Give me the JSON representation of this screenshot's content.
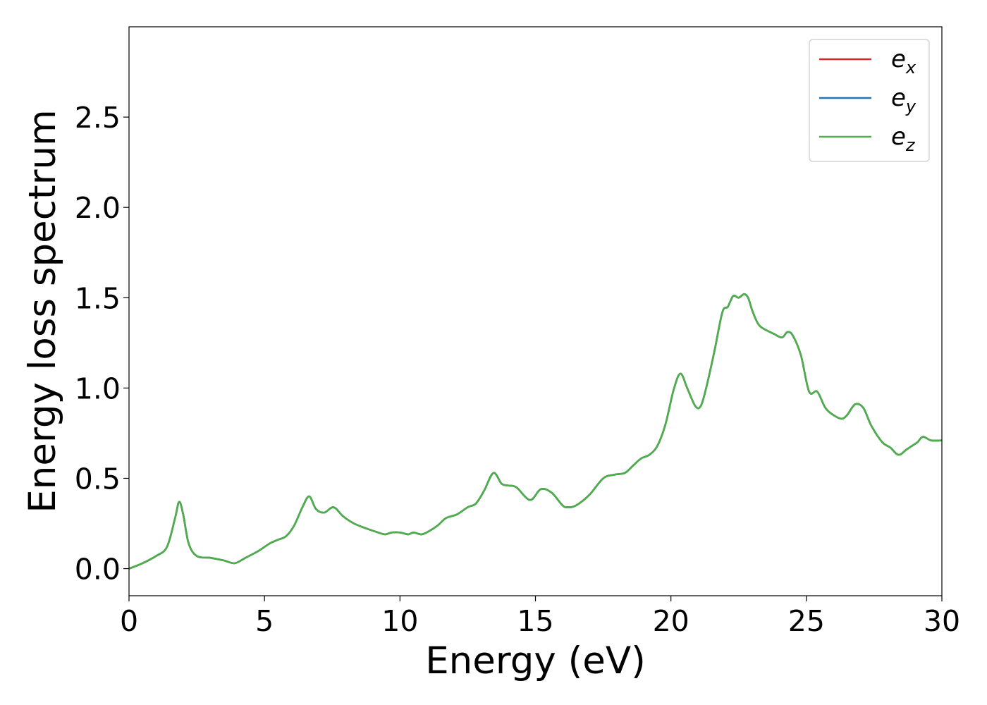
{
  "chart_data": {
    "type": "line",
    "xlabel": "Energy (eV)",
    "ylabel": "Energy loss spectrum",
    "xlim": [
      0,
      30
    ],
    "ylim": [
      -0.15,
      3.0
    ],
    "xticks": [
      "0",
      "5",
      "10",
      "15",
      "20",
      "25",
      "30"
    ],
    "yticks": [
      "0.0",
      "0.5",
      "1.0",
      "1.5",
      "2.0",
      "2.5"
    ],
    "grid": false,
    "legend_position": "top-right",
    "x": [
      0,
      0.5,
      1.0,
      1.4,
      1.7,
      1.85,
      2.0,
      2.2,
      2.5,
      3.0,
      3.5,
      3.9,
      4.3,
      4.8,
      5.2,
      5.5,
      5.8,
      6.1,
      6.4,
      6.65,
      6.9,
      7.2,
      7.55,
      7.9,
      8.3,
      8.8,
      9.2,
      9.45,
      9.7,
      10.0,
      10.3,
      10.5,
      10.8,
      11.1,
      11.4,
      11.7,
      12.1,
      12.5,
      12.8,
      13.1,
      13.45,
      13.75,
      14.0,
      14.3,
      14.8,
      15.2,
      15.6,
      16.0,
      16.2,
      16.5,
      17.0,
      17.5,
      17.9,
      18.3,
      18.6,
      18.9,
      19.2,
      19.5,
      19.8,
      20.1,
      20.35,
      20.6,
      20.9,
      21.1,
      21.3,
      21.6,
      21.9,
      22.1,
      22.3,
      22.5,
      22.7,
      22.85,
      23.0,
      23.2,
      23.4,
      23.8,
      24.1,
      24.3,
      24.5,
      24.8,
      25.1,
      25.4,
      25.7,
      26.0,
      26.3,
      26.5,
      26.8,
      27.1,
      27.4,
      27.8,
      28.1,
      28.4,
      28.7,
      28.9,
      29.1,
      29.3,
      29.6,
      30.0
    ],
    "series": [
      {
        "name": "e_x",
        "color": "#d62728",
        "values": [
          0.0,
          0.03,
          0.07,
          0.12,
          0.28,
          0.37,
          0.3,
          0.14,
          0.07,
          0.06,
          0.045,
          0.03,
          0.06,
          0.1,
          0.14,
          0.16,
          0.18,
          0.24,
          0.34,
          0.4,
          0.33,
          0.31,
          0.34,
          0.29,
          0.25,
          0.22,
          0.2,
          0.19,
          0.2,
          0.2,
          0.19,
          0.2,
          0.19,
          0.21,
          0.24,
          0.28,
          0.3,
          0.34,
          0.36,
          0.43,
          0.53,
          0.47,
          0.46,
          0.45,
          0.38,
          0.44,
          0.42,
          0.35,
          0.34,
          0.35,
          0.41,
          0.5,
          0.52,
          0.53,
          0.57,
          0.61,
          0.63,
          0.68,
          0.8,
          0.99,
          1.08,
          1.0,
          0.9,
          0.9,
          1.0,
          1.2,
          1.42,
          1.45,
          1.51,
          1.5,
          1.52,
          1.5,
          1.43,
          1.36,
          1.33,
          1.3,
          1.28,
          1.31,
          1.29,
          1.18,
          0.98,
          0.98,
          0.89,
          0.85,
          0.83,
          0.85,
          0.91,
          0.89,
          0.79,
          0.7,
          0.67,
          0.63,
          0.66,
          0.68,
          0.7,
          0.73,
          0.71,
          0.71
        ]
      },
      {
        "name": "e_y",
        "color": "#1f77b4",
        "values": [
          0.0,
          0.03,
          0.07,
          0.12,
          0.28,
          0.37,
          0.3,
          0.14,
          0.07,
          0.06,
          0.045,
          0.03,
          0.06,
          0.1,
          0.14,
          0.16,
          0.18,
          0.24,
          0.34,
          0.4,
          0.33,
          0.31,
          0.34,
          0.29,
          0.25,
          0.22,
          0.2,
          0.19,
          0.2,
          0.2,
          0.19,
          0.2,
          0.19,
          0.21,
          0.24,
          0.28,
          0.3,
          0.34,
          0.36,
          0.43,
          0.53,
          0.47,
          0.46,
          0.45,
          0.38,
          0.44,
          0.42,
          0.35,
          0.34,
          0.35,
          0.41,
          0.5,
          0.52,
          0.53,
          0.57,
          0.61,
          0.63,
          0.68,
          0.8,
          0.99,
          1.08,
          1.0,
          0.9,
          0.9,
          1.0,
          1.2,
          1.42,
          1.45,
          1.51,
          1.5,
          1.52,
          1.5,
          1.43,
          1.36,
          1.33,
          1.3,
          1.28,
          1.31,
          1.29,
          1.18,
          0.98,
          0.98,
          0.89,
          0.85,
          0.83,
          0.85,
          0.91,
          0.89,
          0.79,
          0.7,
          0.67,
          0.63,
          0.66,
          0.68,
          0.7,
          0.73,
          0.71,
          0.71
        ]
      },
      {
        "name": "e_z",
        "color": "#4daf4a",
        "values": [
          0.0,
          0.03,
          0.07,
          0.12,
          0.28,
          0.37,
          0.3,
          0.14,
          0.07,
          0.06,
          0.045,
          0.03,
          0.06,
          0.1,
          0.14,
          0.16,
          0.18,
          0.24,
          0.34,
          0.4,
          0.33,
          0.31,
          0.34,
          0.29,
          0.25,
          0.22,
          0.2,
          0.19,
          0.2,
          0.2,
          0.19,
          0.2,
          0.19,
          0.21,
          0.24,
          0.28,
          0.3,
          0.34,
          0.36,
          0.43,
          0.53,
          0.47,
          0.46,
          0.45,
          0.38,
          0.44,
          0.42,
          0.35,
          0.34,
          0.35,
          0.41,
          0.5,
          0.52,
          0.53,
          0.57,
          0.61,
          0.63,
          0.68,
          0.8,
          0.99,
          1.08,
          1.0,
          0.9,
          0.9,
          1.0,
          1.2,
          1.42,
          1.45,
          1.51,
          1.5,
          1.52,
          1.5,
          1.43,
          1.36,
          1.33,
          1.3,
          1.28,
          1.31,
          1.29,
          1.18,
          0.98,
          0.98,
          0.89,
          0.85,
          0.83,
          0.85,
          0.91,
          0.89,
          0.79,
          0.7,
          0.67,
          0.63,
          0.66,
          0.68,
          0.7,
          0.73,
          0.71,
          0.71
        ]
      }
    ],
    "legend": [
      {
        "base": "e",
        "sub": "x",
        "color": "#d62728"
      },
      {
        "base": "e",
        "sub": "y",
        "color": "#1f77b4"
      },
      {
        "base": "e",
        "sub": "z",
        "color": "#4daf4a"
      }
    ]
  }
}
